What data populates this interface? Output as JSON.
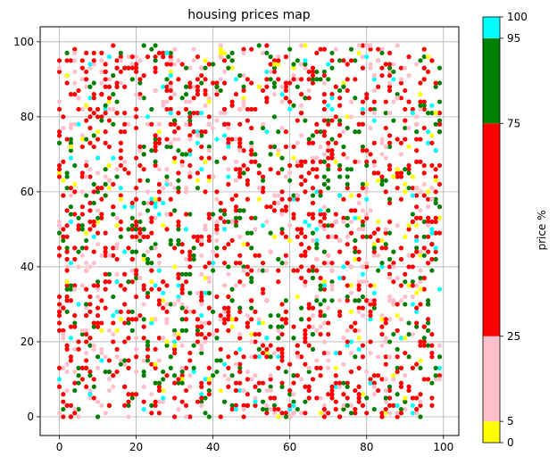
{
  "chart_data": [
    {
      "type": "scatter",
      "title": "housing prices map",
      "xlabel": "",
      "ylabel": "",
      "xlim": [
        -5,
        104
      ],
      "ylim": [
        -5,
        104
      ],
      "xticks": [
        0,
        20,
        40,
        60,
        80,
        100
      ],
      "yticks": [
        0,
        20,
        40,
        60,
        80,
        100
      ],
      "grid": true,
      "marker": "circle",
      "point_count": 2400,
      "point_distribution": "randomly scattered over x 0-99 and y 0-99 on an integer grid",
      "color_classes": [
        {
          "range": [
            0,
            5
          ],
          "color": "#ffff00",
          "approx_share": 0.05
        },
        {
          "range": [
            5,
            25
          ],
          "color": "#ffc0cb",
          "approx_share": 0.2
        },
        {
          "range": [
            25,
            75
          ],
          "color": "#ff0000",
          "approx_share": 0.5
        },
        {
          "range": [
            75,
            95
          ],
          "color": "#008000",
          "approx_share": 0.2
        },
        {
          "range": [
            95,
            100
          ],
          "color": "#00ffff",
          "approx_share": 0.05
        }
      ]
    },
    {
      "type": "colorbar",
      "label": "price %",
      "boundaries": [
        0,
        5,
        25,
        75,
        95,
        100
      ],
      "tick_labels": [
        "0",
        "5",
        "25",
        "75",
        "95",
        "100"
      ],
      "colors": [
        "#ffff00",
        "#ffc0cb",
        "#ff0000",
        "#008000",
        "#00ffff"
      ]
    }
  ]
}
